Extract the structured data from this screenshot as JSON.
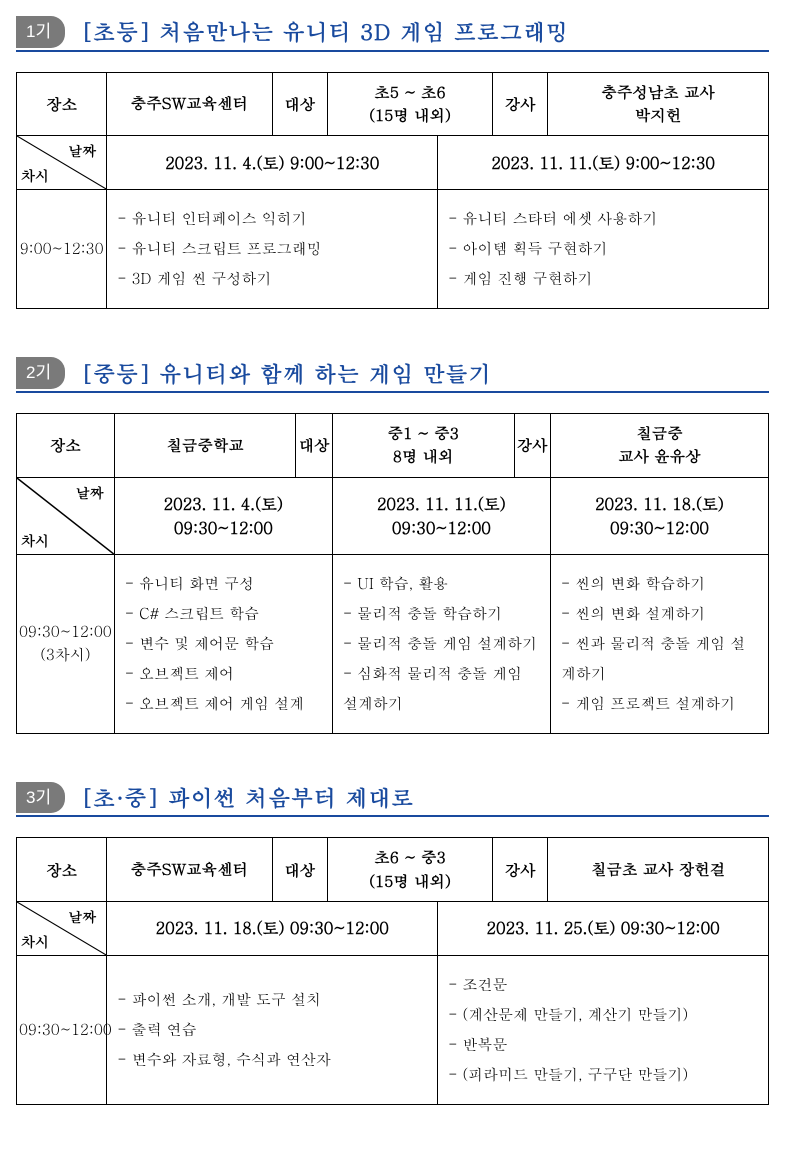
{
  "sections": [
    {
      "badge": "1기",
      "title": "[초등] 처음만나는 유니티 3D 게임 프로그래밍",
      "info_labels": {
        "place": "장소",
        "target": "대상",
        "teacher": "강사"
      },
      "info": {
        "place": "충주SW교육센터",
        "target": "초5 ~ 초6\n(15명 내외)",
        "teacher": "충주성남초 교사\n박지헌"
      },
      "axis": {
        "row": "차시",
        "col": "날짜"
      },
      "dates": [
        "2023. 11. 4.(토) 9:00~12:30",
        "2023. 11. 11.(토) 9:00~12:30"
      ],
      "rows": [
        {
          "time": "9:00~12:30",
          "cells": [
            [
              "- 유니티 인터페이스 익히기",
              "- 유니티 스크립트 프로그래밍",
              "- 3D 게임 씬 구성하기"
            ],
            [
              "- 유니티 스타터 에셋 사용하기",
              "- 아이템 획득 구현하기",
              "- 게임 진행 구현하기"
            ]
          ]
        }
      ],
      "col_widths": {
        "first": "12%",
        "info_label": "6%",
        "date_cols": 2
      }
    },
    {
      "badge": "2기",
      "title": "[중등] 유니티와 함께 하는 게임 만들기",
      "info_labels": {
        "place": "장소",
        "target": "대상",
        "teacher": "강사"
      },
      "info": {
        "place": "칠금중학교",
        "target": "중1 ~ 중3\n8명 내외",
        "teacher": "칠금중\n교사 윤유상"
      },
      "axis": {
        "row": "차시",
        "col": "날짜"
      },
      "dates": [
        "2023. 11. 4.(토)\n09:30~12:00",
        "2023. 11. 11.(토)\n09:30~12:00",
        "2023. 11. 18.(토)\n09:30~12:00"
      ],
      "rows": [
        {
          "time": "09:30~12:00\n(3차시)",
          "cells": [
            [
              "- 유니티 화면 구성",
              "- C# 스크립트 학습",
              "- 변수 및 제어문 학습",
              "- 오브젝트 제어",
              "- 오브젝트 제어 게임 설계"
            ],
            [
              "- UI 학습, 활용",
              "- 물리적 충돌 학습하기",
              "- 물리적 충돌 게임 설계하기",
              "- 심화적 물리적 충돌 게임 설계하기"
            ],
            [
              "- 씬의 변화 학습하기",
              "- 씬의 변화 설계하기",
              "- 씬과 물리적 충돌 게임 설계하기",
              "- 게임 프로젝트 설계하기"
            ]
          ]
        }
      ],
      "col_widths": {
        "first": "13%",
        "info_label": "7%",
        "date_cols": 3
      }
    },
    {
      "badge": "3기",
      "title": "[초·중] 파이썬 처음부터 제대로",
      "info_labels": {
        "place": "장소",
        "target": "대상",
        "teacher": "강사"
      },
      "info": {
        "place": "충주SW교육센터",
        "target": "초6 ~ 중3\n(15명 내외)",
        "teacher": "칠금초 교사 장헌걸"
      },
      "axis": {
        "row": "차시",
        "col": "날짜"
      },
      "dates": [
        "2023. 11. 18.(토) 09:30~12:00",
        "2023. 11. 25.(토) 09:30~12:00"
      ],
      "rows": [
        {
          "time": "09:30~12:00",
          "cells": [
            [
              "- 파이썬 소개, 개발 도구 설치",
              "- 출력 연습",
              "- 변수와 자료형, 수식과 연산자"
            ],
            [
              "- 조건문",
              "- (계산문제 만들기, 계산기 만들기)",
              "- 반복문",
              "- (피라미드 만들기, 구구단 만들기)"
            ]
          ]
        }
      ],
      "col_widths": {
        "first": "12%",
        "info_label": "6%",
        "date_cols": 2
      }
    }
  ]
}
